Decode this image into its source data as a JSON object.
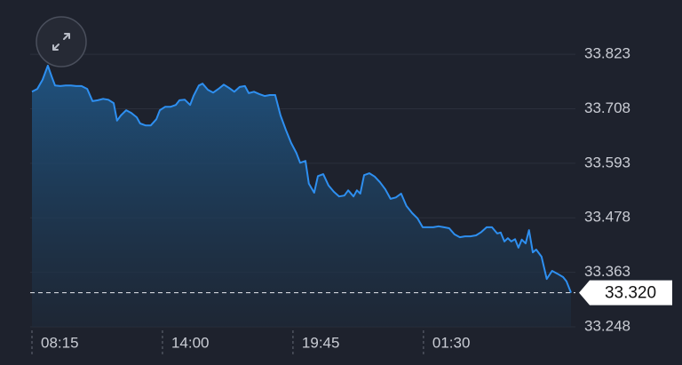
{
  "chart_data": {
    "type": "area",
    "x": [
      0,
      14,
      28,
      42,
      52,
      61,
      75,
      89,
      103,
      117,
      131,
      146,
      160,
      174,
      188,
      202,
      216,
      225,
      235,
      249,
      263,
      277,
      286,
      300,
      314,
      329,
      338,
      352,
      366,
      380,
      390,
      404,
      418,
      427,
      441,
      451,
      465,
      479,
      493,
      507,
      521,
      535,
      549,
      563,
      573,
      587,
      601,
      615,
      629,
      643,
      657,
      671,
      685,
      699,
      709,
      723,
      732,
      746,
      756,
      770,
      784,
      798,
      812,
      826,
      836,
      850,
      859,
      868,
      878,
      892,
      906,
      920,
      934,
      948,
      962,
      976,
      990,
      1005,
      1019,
      1033,
      1047,
      1061,
      1075,
      1089,
      1103,
      1117,
      1131,
      1145,
      1159,
      1174,
      1188,
      1202,
      1216,
      1230,
      1239,
      1249,
      1258,
      1267,
      1277,
      1286,
      1295,
      1305,
      1314,
      1324,
      1333,
      1347,
      1361,
      1375,
      1389,
      1404,
      1413,
      1425
    ],
    "series": [
      {
        "color": "#2e8ff0",
        "values": [
          33.744,
          33.75,
          33.769,
          33.799,
          33.776,
          33.757,
          33.756,
          33.757,
          33.757,
          33.756,
          33.756,
          33.75,
          33.724,
          33.726,
          33.729,
          33.727,
          33.72,
          33.683,
          33.694,
          33.705,
          33.699,
          33.69,
          33.677,
          33.673,
          33.673,
          33.686,
          33.705,
          33.712,
          33.712,
          33.716,
          33.726,
          33.727,
          33.716,
          33.735,
          33.757,
          33.761,
          33.748,
          33.742,
          33.75,
          33.759,
          33.752,
          33.744,
          33.754,
          33.756,
          33.741,
          33.744,
          33.739,
          33.735,
          33.737,
          33.737,
          33.694,
          33.664,
          33.636,
          33.615,
          33.594,
          33.598,
          33.55,
          33.531,
          33.566,
          33.57,
          33.546,
          33.533,
          33.523,
          33.525,
          33.536,
          33.523,
          33.536,
          33.529,
          33.568,
          33.572,
          33.565,
          33.553,
          33.538,
          33.518,
          33.521,
          33.529,
          33.503,
          33.488,
          33.477,
          33.458,
          33.458,
          33.458,
          33.46,
          33.458,
          33.456,
          33.443,
          33.437,
          33.439,
          33.439,
          33.441,
          33.448,
          33.458,
          33.458,
          33.445,
          33.447,
          33.428,
          33.435,
          33.428,
          33.433,
          33.415,
          33.432,
          33.424,
          33.452,
          33.405,
          33.411,
          33.396,
          33.349,
          33.366,
          33.36,
          33.353,
          33.344,
          33.32
        ]
      }
    ],
    "xlim": [
      0,
      1425
    ],
    "xticks": [
      {
        "value": 0,
        "label": "08:15"
      },
      {
        "value": 345,
        "label": "14:00"
      },
      {
        "value": 690,
        "label": "19:45"
      },
      {
        "value": 1035,
        "label": "01:30"
      }
    ],
    "ylim": [
      33.248,
      33.9
    ],
    "yticks": [
      33.248,
      33.363,
      33.478,
      33.593,
      33.708,
      33.823
    ],
    "grid": true,
    "current": {
      "value": 33.32,
      "label": "33.320"
    }
  }
}
